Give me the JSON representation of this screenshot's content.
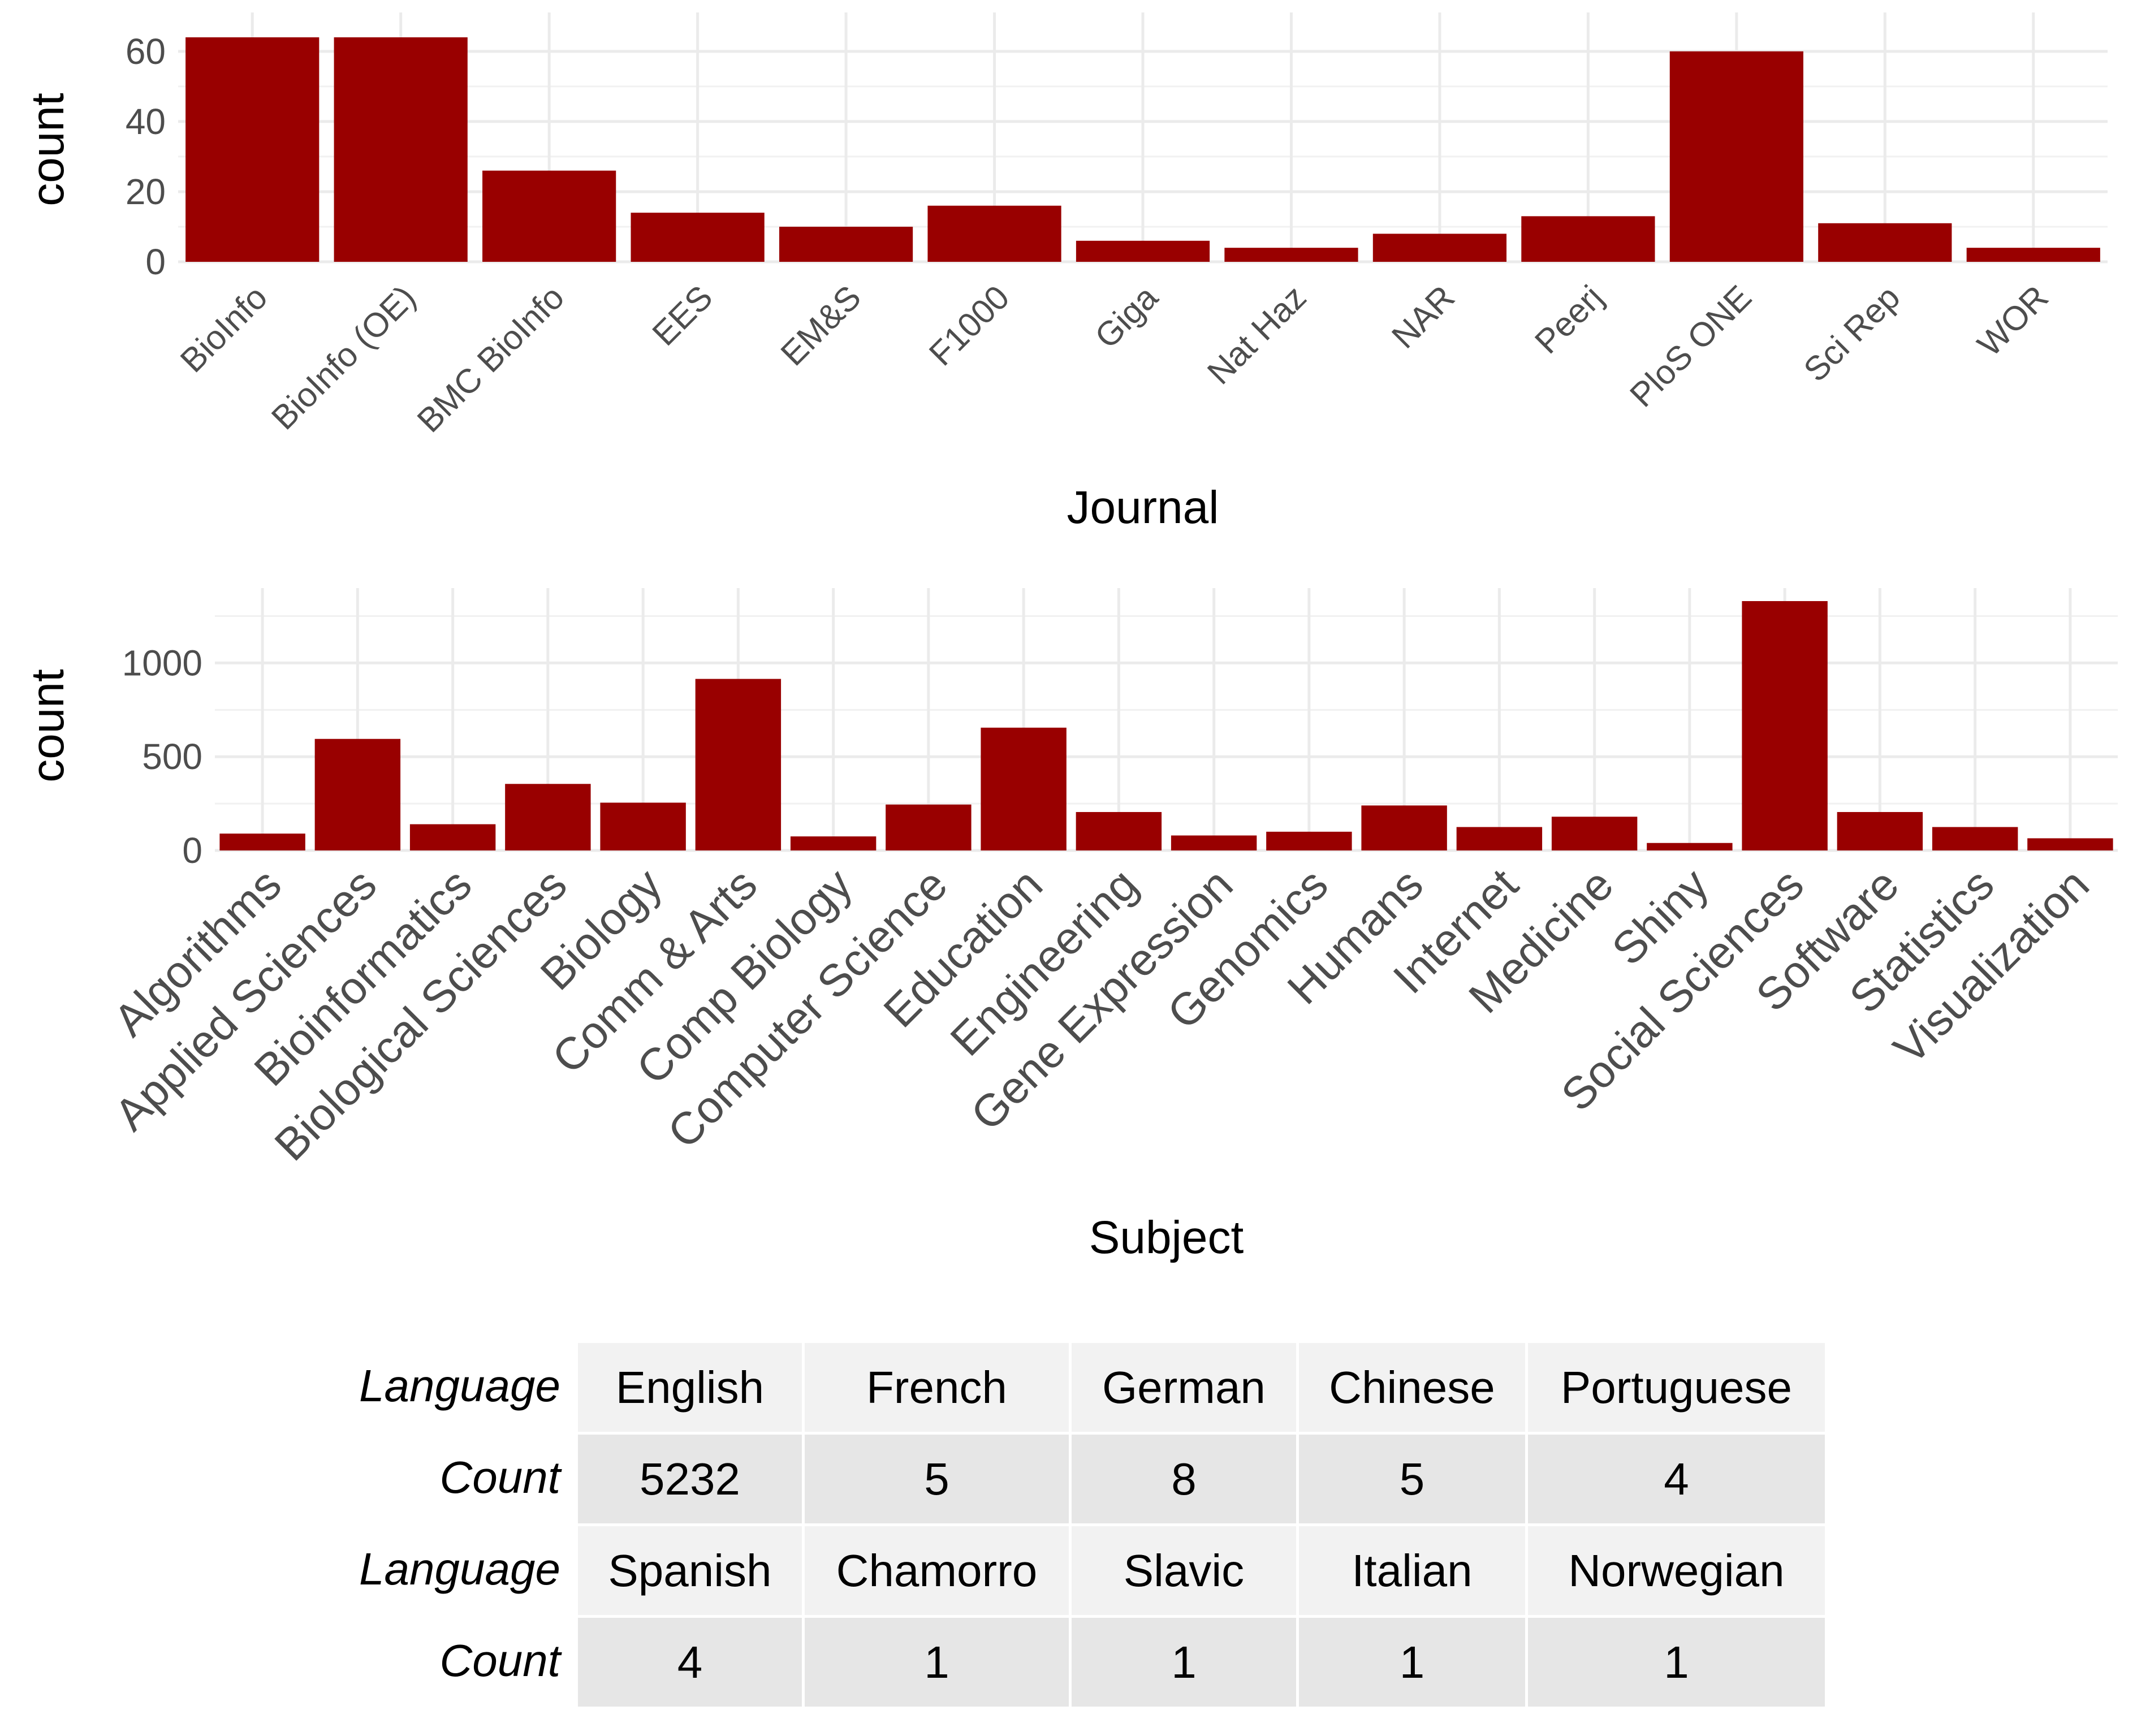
{
  "chart_data": [
    {
      "type": "bar",
      "xlabel": "Journal",
      "ylabel": "count",
      "categories": [
        "BioInfo",
        "BioInfo (OE)",
        "BMC BioInfo",
        "EES",
        "EM&S",
        "F1000",
        "Giga",
        "Nat Haz",
        "NAR",
        "Peerj",
        "PloS ONE",
        "Sci Rep",
        "WOR"
      ],
      "values": [
        64,
        64,
        26,
        14,
        10,
        16,
        6,
        4,
        8,
        13,
        60,
        11,
        4
      ],
      "yticks": [
        "0",
        "20",
        "40",
        "60"
      ],
      "ylim": [
        0,
        64
      ],
      "grid": true,
      "bar_color": "#990000"
    },
    {
      "type": "bar",
      "xlabel": "Subject",
      "ylabel": "count",
      "categories": [
        "Algorithms",
        "Applied Sciences",
        "Bioinformatics",
        "Biological Sciences",
        "Biology",
        "Comm & Arts",
        "Comp Biology",
        "Computer Science",
        "Education",
        "Engineering",
        "Gene Expression",
        "Genomics",
        "Humans",
        "Internet",
        "Medicine",
        "Shiny",
        "Social Sciences",
        "Software",
        "Statistics",
        "Visualization"
      ],
      "values": [
        90,
        595,
        140,
        355,
        255,
        915,
        75,
        245,
        655,
        205,
        80,
        100,
        240,
        125,
        180,
        40,
        1330,
        205,
        125,
        65
      ],
      "yticks": [
        "0",
        "500",
        "1000"
      ],
      "ylim": [
        0,
        1330
      ],
      "grid": true,
      "bar_color": "#990000"
    },
    {
      "type": "table",
      "rows": [
        {
          "header": "Language",
          "cells": [
            "English",
            "French",
            "German",
            "Chinese",
            "Portuguese"
          ]
        },
        {
          "header": "Count",
          "cells": [
            "5232",
            "5",
            "8",
            "5",
            "4"
          ]
        },
        {
          "header": "Language",
          "cells": [
            "Spanish",
            "Chamorro",
            "Slavic",
            "Italian",
            "Norwegian"
          ]
        },
        {
          "header": "Count",
          "cells": [
            "4",
            "1",
            "1",
            "1",
            "1"
          ]
        }
      ]
    }
  ]
}
